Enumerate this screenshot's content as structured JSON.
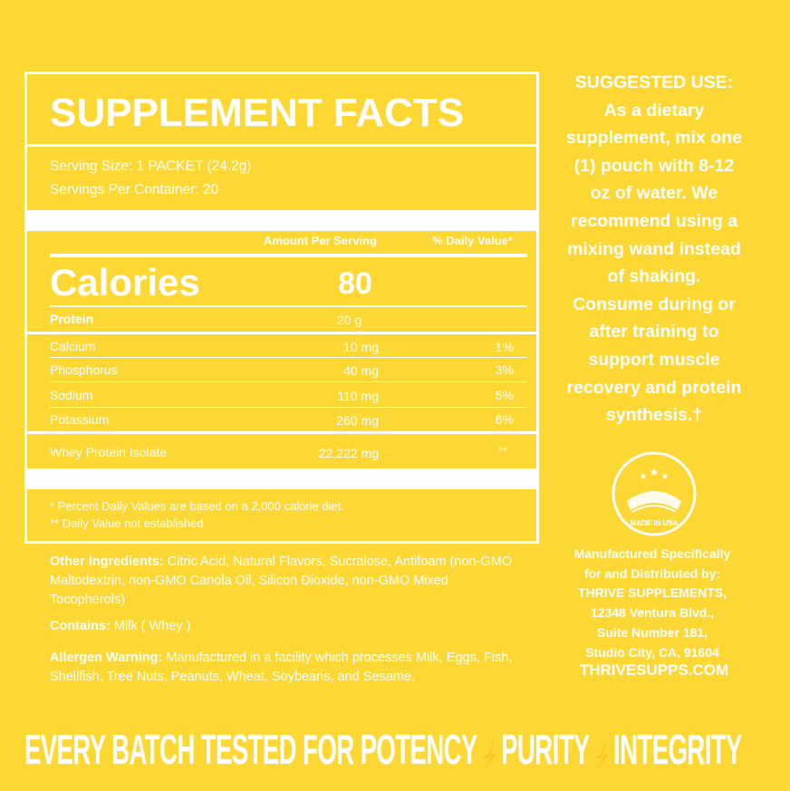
{
  "facts": {
    "title": "SUPPLEMENT FACTS",
    "serving_size": "Serving Size: 1 PACKET (24.2g)",
    "servings_per_container": "Servings Per Container: 20",
    "column_headers": [
      "Amount Per Serving",
      "% Daily Value*"
    ],
    "calories": {
      "label": "Calories",
      "amount": "80"
    },
    "protein": {
      "name": "Protein",
      "amount": "20 g"
    },
    "rows": [
      {
        "name": "Calcium",
        "amount": "10 mg",
        "dv": "1%"
      },
      {
        "name": "Phosphorus",
        "amount": "40 mg",
        "dv": "3%"
      },
      {
        "name": "Sodium",
        "amount": "110 mg",
        "dv": "5%"
      },
      {
        "name": "Potassium",
        "amount": "260 mg",
        "dv": "6%"
      }
    ],
    "whey": {
      "name": "Whey Protein Isolate",
      "amount": "22,222 mg",
      "dv": "**"
    },
    "footnotes": [
      "* Percent Daily Values are based on a 2,000 calorie diet.",
      "** Daily Value not established"
    ]
  },
  "ingredients": {
    "other": {
      "label": "Other Ingredients:",
      "text": "Citric Acid, Natural Flavors, Sucralose, Antifoam (non-GMO Maltodextrin, non-GMO Canola Oil, Silicon Dioxide, non-GMO Mixed Tocopherols)"
    },
    "contains": {
      "label": "Contains:",
      "text": "Milk ( Whey )"
    },
    "allergen": {
      "label": "Allergen Warning:",
      "text": "Manufactured in a facility which processes Milk, Eggs, Fish, Shellfish, Tree Nuts, Peanuts, Wheat, Soybeans, and Sesame."
    }
  },
  "suggested_use": {
    "title": "SUGGESTED USE:",
    "lines": [
      "As a dietary",
      "supplement, mix one",
      "(1) pouch with 8-12",
      "oz of water. We",
      "recommend using a",
      "mixing wand instead",
      "of shaking.",
      "Consume during or",
      "after training to",
      "support muscle",
      "recovery and protein",
      "synthesis.†"
    ]
  },
  "badge": {
    "text": "MADE IN USA"
  },
  "manufacturer": {
    "lines": [
      "Manufactured Specifically",
      "for and Distributed by:",
      "THRIVE SUPPLEMENTS,",
      "12348 Ventura Blvd.,",
      "Suite Number 181,",
      "Studio City, CA, 91604"
    ],
    "website": "THRIVESUPPS.COM"
  },
  "banner": [
    "EVERY BATCH TESTED FOR POTENCY",
    "PURITY",
    "INTEGRITY"
  ]
}
